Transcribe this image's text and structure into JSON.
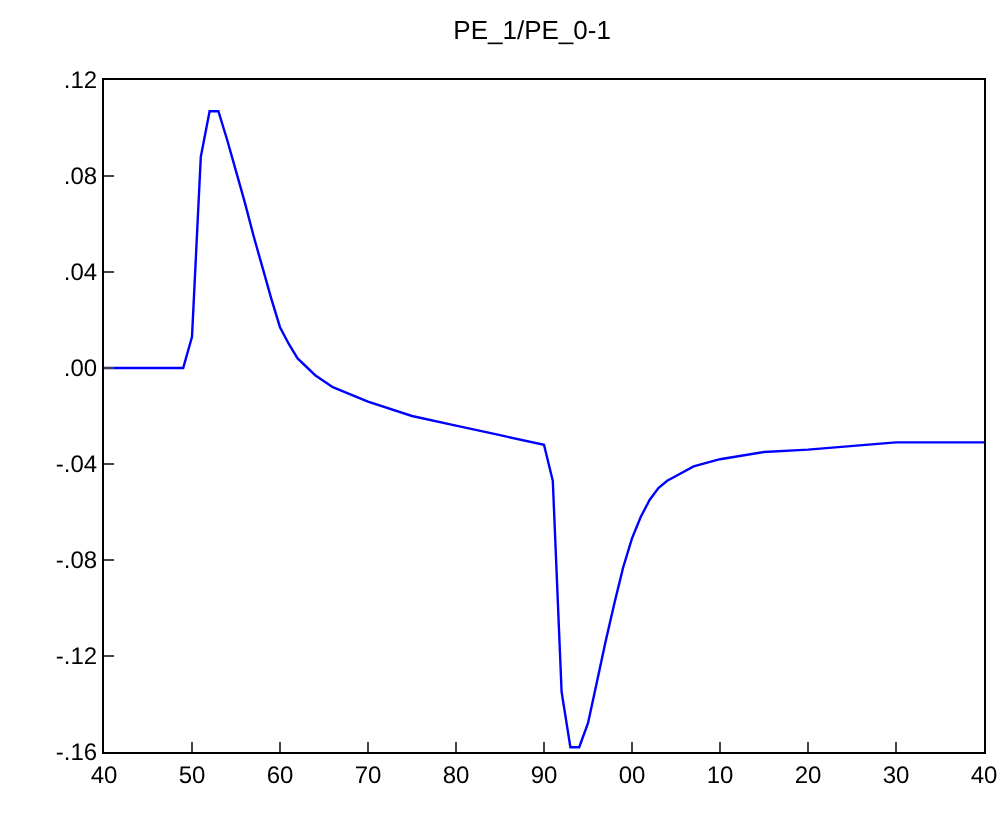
{
  "chart_data": {
    "type": "line",
    "title": "PE_1/PE_0-1",
    "x": [
      1940,
      1945,
      1949,
      1950,
      1951,
      1952,
      1953,
      1954,
      1955,
      1956,
      1957,
      1958,
      1959,
      1960,
      1961,
      1962,
      1964,
      1966,
      1970,
      1975,
      1980,
      1985,
      1990,
      1991,
      1992,
      1993,
      1994,
      1995,
      1996,
      1997,
      1998,
      1999,
      2000,
      2001,
      2002,
      2003,
      2004,
      2005,
      2007,
      2010,
      2015,
      2020,
      2030,
      2040
    ],
    "series": [
      {
        "color": "#0000ff",
        "values": [
          0,
          0,
          0,
          0.013,
          0.088,
          0.107,
          0.107,
          0.095,
          0.082,
          0.069,
          0.055,
          0.042,
          0.029,
          0.017,
          0.01,
          0.004,
          -0.003,
          -0.008,
          -0.014,
          -0.02,
          -0.024,
          -0.028,
          -0.032,
          -0.047,
          -0.135,
          -0.158,
          -0.158,
          -0.148,
          -0.131,
          -0.114,
          -0.098,
          -0.083,
          -0.071,
          -0.062,
          -0.055,
          -0.05,
          -0.047,
          -0.045,
          -0.041,
          -0.038,
          -0.035,
          -0.034,
          -0.031,
          -0.031
        ]
      }
    ],
    "xlim": [
      1940,
      2040
    ],
    "xticks": [
      {
        "value": 1940,
        "label": "40"
      },
      {
        "value": 1950,
        "label": "50"
      },
      {
        "value": 1960,
        "label": "60"
      },
      {
        "value": 1970,
        "label": "70"
      },
      {
        "value": 1980,
        "label": "80"
      },
      {
        "value": 1990,
        "label": "90"
      },
      {
        "value": 2000,
        "label": "00"
      },
      {
        "value": 2010,
        "label": "10"
      },
      {
        "value": 2020,
        "label": "20"
      },
      {
        "value": 2030,
        "label": "30"
      },
      {
        "value": 2040,
        "label": "40"
      }
    ],
    "ylim": [
      -0.16,
      0.12
    ],
    "yticks": [
      {
        "value": -0.16,
        "label": "-.16"
      },
      {
        "value": -0.12,
        "label": "-.12"
      },
      {
        "value": -0.08,
        "label": "-.08"
      },
      {
        "value": -0.04,
        "label": "-.04"
      },
      {
        "value": 0,
        "label": ".00"
      },
      {
        "value": 0.04,
        "label": ".04"
      },
      {
        "value": 0.08,
        "label": ".08"
      },
      {
        "value": 0.12,
        "label": ".12"
      }
    ],
    "grid": false
  }
}
